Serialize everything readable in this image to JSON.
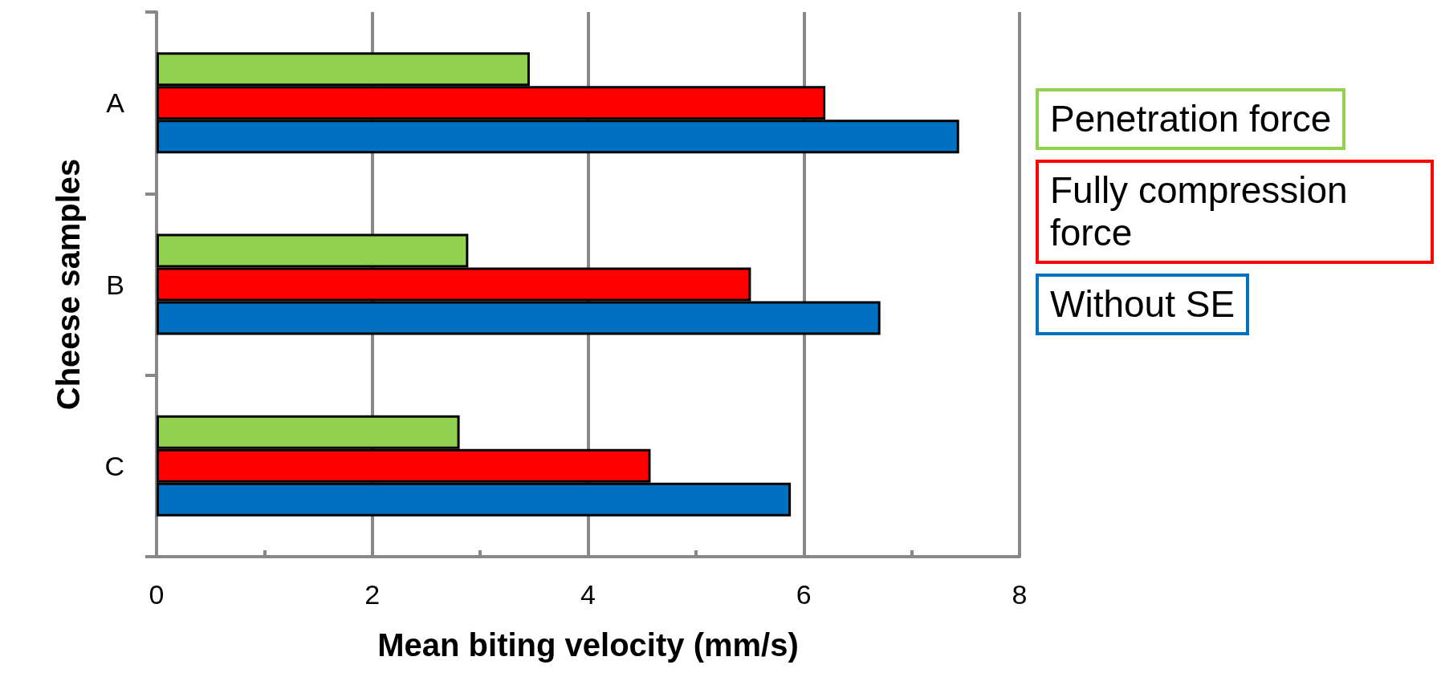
{
  "chart_data": {
    "type": "bar",
    "orientation": "horizontal",
    "xlabel": "Mean biting velocity (mm/s)",
    "ylabel": "Cheese samples",
    "categories": [
      "A",
      "B",
      "C"
    ],
    "series": [
      {
        "name": "Penetration force",
        "color": "#92d050",
        "values": [
          3.46,
          2.89,
          2.81
        ]
      },
      {
        "name": "Fully compression force",
        "color": "#ff0000",
        "values": [
          6.2,
          5.51,
          4.58
        ]
      },
      {
        "name": "Without SE",
        "color": "#0070c0",
        "values": [
          7.44,
          6.71,
          5.88
        ]
      }
    ],
    "xlim": [
      0,
      8
    ],
    "xticks": [
      0,
      {
        "value": 1,
        "label": null
      },
      2,
      {
        "value": 3,
        "label": null
      },
      4,
      {
        "value": 5,
        "label": null
      },
      6,
      {
        "value": 7,
        "label": null
      },
      8
    ],
    "grid": "x",
    "legend": "right"
  }
}
